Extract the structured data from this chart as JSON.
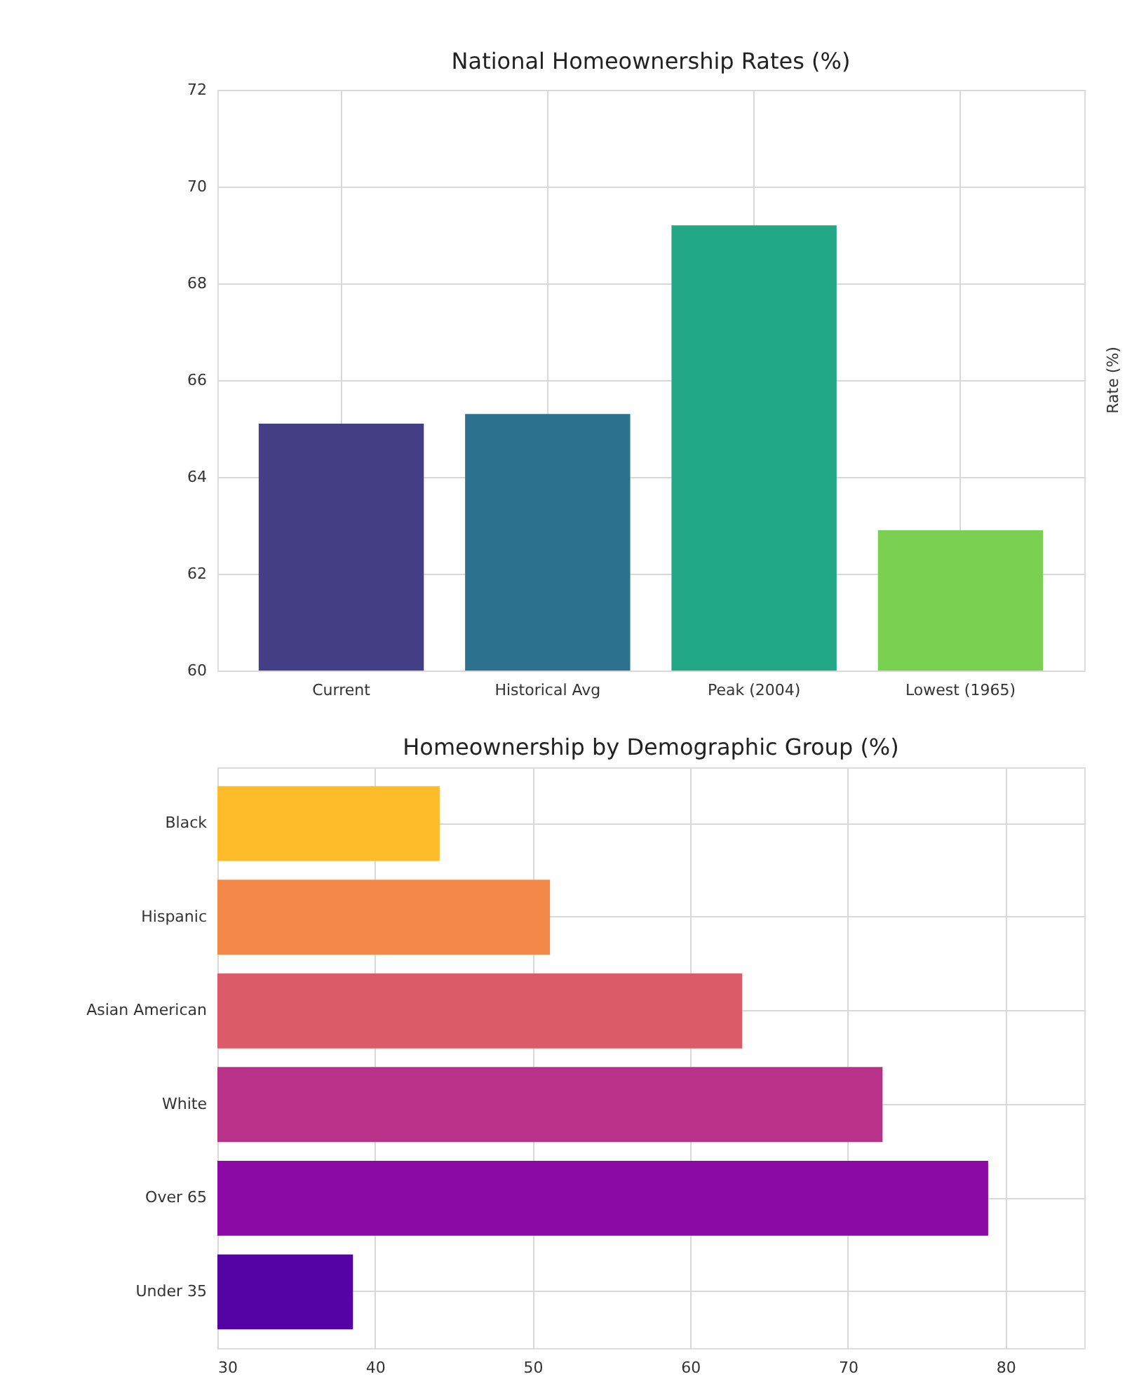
{
  "chart_data": [
    {
      "type": "bar",
      "title": "National Homeownership Rates (%)",
      "ylabel": "Rate (%)",
      "categories": [
        "Current",
        "Historical Avg",
        "Peak (2004)",
        "Lowest (1965)"
      ],
      "values": [
        65.1,
        65.3,
        69.2,
        62.9
      ],
      "colors": [
        "#433e85",
        "#2c728e",
        "#22a884",
        "#7ad151"
      ],
      "ylim": [
        60,
        72
      ],
      "yticks": [
        60,
        62,
        64,
        66,
        68,
        70,
        72
      ],
      "grid": true
    },
    {
      "type": "bar",
      "orientation": "horizontal",
      "title": "Homeownership by Demographic Group (%)",
      "categories": [
        "Black",
        "Hispanic",
        "Asian American",
        "White",
        "Over 65",
        "Under 35"
      ],
      "values": [
        44.1,
        51.1,
        63.3,
        72.2,
        78.9,
        38.6
      ],
      "colors": [
        "#febc2b",
        "#f48849",
        "#db5c68",
        "#b83289",
        "#8b0aa5",
        "#5302a3"
      ],
      "xlim": [
        30,
        85
      ],
      "xticks": [
        30,
        40,
        50,
        60,
        70,
        80
      ],
      "grid": true
    }
  ]
}
